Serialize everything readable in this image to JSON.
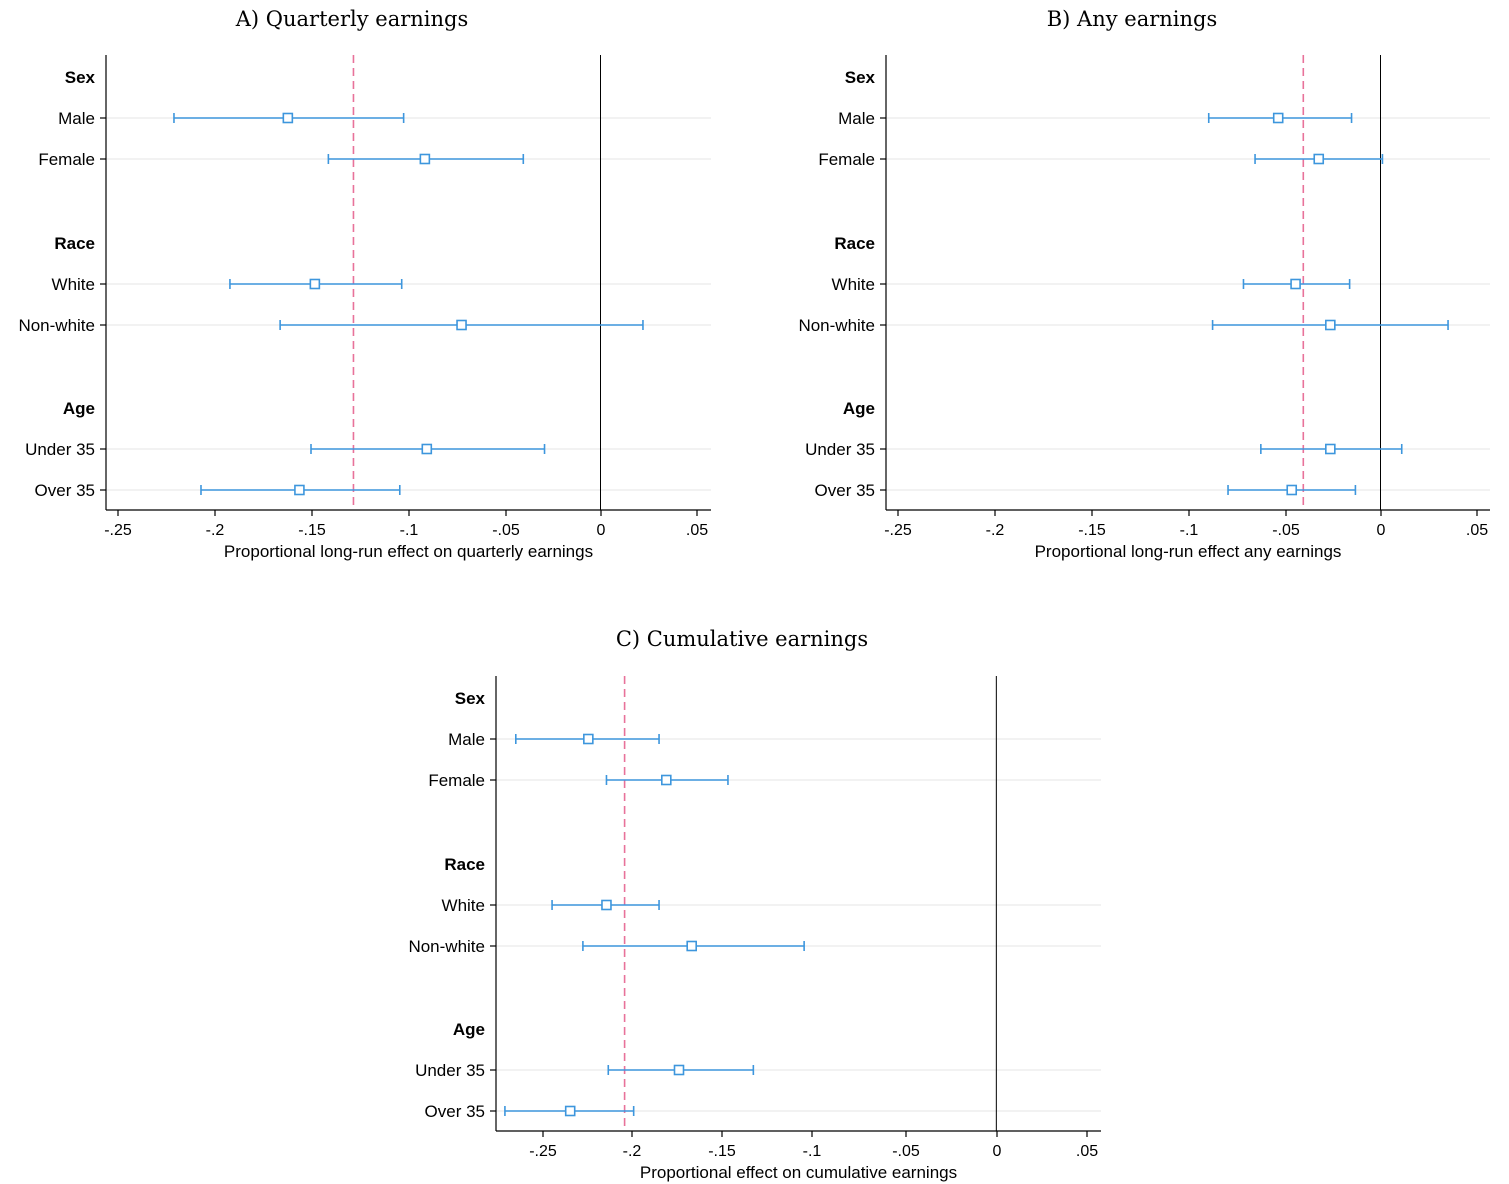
{
  "chart_data": [
    {
      "type": "scatter",
      "title": "A) Quarterly earnings",
      "xlabel": "Proportional long-run effect on quarterly earnings",
      "xlim": [
        -0.255,
        0.056
      ],
      "xticks": [
        -0.25,
        -0.2,
        -0.15,
        -0.1,
        -0.05,
        0,
        0.05
      ],
      "xtick_labels": [
        "-.25",
        "-.2",
        "-.15",
        "-.1",
        "-.05",
        "0",
        ".05"
      ],
      "reference_line": -0.128,
      "zero_line": 0,
      "groups": [
        {
          "header": "Sex",
          "rows": [
            {
              "label": "Male",
              "estimate": -0.162,
              "ci": [
                -0.221,
                -0.102
              ]
            },
            {
              "label": "Female",
              "estimate": -0.091,
              "ci": [
                -0.141,
                -0.04
              ]
            }
          ]
        },
        {
          "header": "Race",
          "rows": [
            {
              "label": "White",
              "estimate": -0.148,
              "ci": [
                -0.192,
                -0.103
              ]
            },
            {
              "label": "Non-white",
              "estimate": -0.072,
              "ci": [
                -0.166,
                0.022
              ]
            }
          ]
        },
        {
          "header": "Age",
          "rows": [
            {
              "label": "Under 35",
              "estimate": -0.09,
              "ci": [
                -0.15,
                -0.029
              ]
            },
            {
              "label": "Over 35",
              "estimate": -0.156,
              "ci": [
                -0.207,
                -0.104
              ]
            }
          ]
        }
      ]
    },
    {
      "type": "scatter",
      "title": "B) Any earnings",
      "xlabel": "Proportional long-run effect any earnings",
      "xlim": [
        -0.255,
        0.056
      ],
      "xticks": [
        -0.25,
        -0.2,
        -0.15,
        -0.1,
        -0.05,
        0,
        0.05
      ],
      "xtick_labels": [
        "-.25",
        "-.2",
        "-.15",
        "-.1",
        "-.05",
        "0",
        ".05"
      ],
      "reference_line": -0.04,
      "zero_line": 0,
      "groups": [
        {
          "header": "Sex",
          "rows": [
            {
              "label": "Male",
              "estimate": -0.053,
              "ci": [
                -0.089,
                -0.015
              ]
            },
            {
              "label": "Female",
              "estimate": -0.032,
              "ci": [
                -0.065,
                0.001
              ]
            }
          ]
        },
        {
          "header": "Race",
          "rows": [
            {
              "label": "White",
              "estimate": -0.044,
              "ci": [
                -0.071,
                -0.016
              ]
            },
            {
              "label": "Non-white",
              "estimate": -0.026,
              "ci": [
                -0.087,
                0.035
              ]
            }
          ]
        },
        {
          "header": "Age",
          "rows": [
            {
              "label": "Under 35",
              "estimate": -0.026,
              "ci": [
                -0.062,
                0.011
              ]
            },
            {
              "label": "Over 35",
              "estimate": -0.046,
              "ci": [
                -0.079,
                -0.013
              ]
            }
          ]
        }
      ]
    },
    {
      "type": "scatter",
      "title": "C) Cumulative earnings",
      "xlabel": "Proportional effect on cumulative earnings",
      "xlim": [
        -0.278,
        0.056
      ],
      "xticks": [
        -0.25,
        -0.2,
        -0.15,
        -0.1,
        -0.05,
        0,
        0.05
      ],
      "xtick_labels": [
        "-.25",
        "-.2",
        "-.15",
        "-.1",
        "-.05",
        "0",
        ".05"
      ],
      "reference_line": -0.205,
      "zero_line": 0,
      "groups": [
        {
          "header": "Sex",
          "rows": [
            {
              "label": "Male",
              "estimate": -0.225,
              "ci": [
                -0.265,
                -0.186
              ]
            },
            {
              "label": "Female",
              "estimate": -0.182,
              "ci": [
                -0.215,
                -0.148
              ]
            }
          ]
        },
        {
          "header": "Race",
          "rows": [
            {
              "label": "White",
              "estimate": -0.215,
              "ci": [
                -0.245,
                -0.186
              ]
            },
            {
              "label": "Non-white",
              "estimate": -0.168,
              "ci": [
                -0.228,
                -0.106
              ]
            }
          ]
        },
        {
          "header": "Age",
          "rows": [
            {
              "label": "Under 35",
              "estimate": -0.175,
              "ci": [
                -0.214,
                -0.134
              ]
            },
            {
              "label": "Over 35",
              "estimate": -0.235,
              "ci": [
                -0.271,
                -0.2
              ]
            }
          ]
        }
      ]
    }
  ],
  "colors": {
    "marker": "#3d96dd",
    "reference_line": "#e8729a",
    "zero_line": "#000000",
    "gridline": "#eaeaea"
  }
}
